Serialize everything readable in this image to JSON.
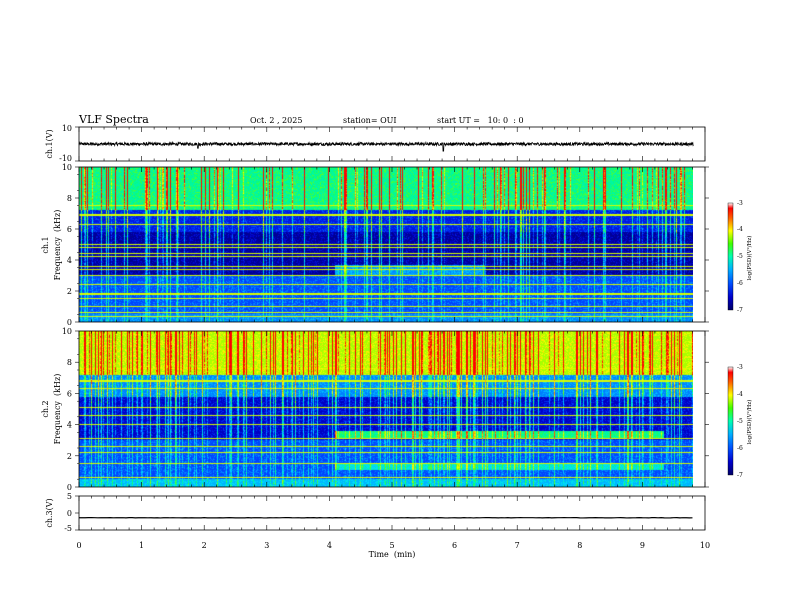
{
  "header": {
    "title": "VLF Spectra",
    "date": "Oct. 2 , 2025",
    "station": "station= OUI",
    "start": "start UT =   10: 0  : 0"
  },
  "colors": {
    "colormap": [
      "#000066",
      "#0000cc",
      "#0040ff",
      "#0099ff",
      "#00e0ff",
      "#00ff80",
      "#80ff00",
      "#ffff00",
      "#ff8000",
      "#ff0000",
      "#ffffff"
    ],
    "trace": "#000000"
  },
  "chart_data": [
    {
      "type": "line",
      "panel": "ch.1 waveform",
      "ylabel": "ch.1(V)",
      "ylim": [
        -10,
        10
      ],
      "yticks": [
        "10",
        "-10"
      ],
      "baseline": 0,
      "noise_amplitude": 0.9,
      "spikes": [
        {
          "x": 1.9,
          "y": -2.5
        },
        {
          "x": 5.82,
          "y": -4.2
        }
      ],
      "xlim": [
        0,
        10
      ],
      "data_end": 9.82
    },
    {
      "type": "heatmap",
      "panel": "ch.1 spectrogram",
      "ylabel_channel": "ch.1",
      "ylabel": "Frequency  (kHz)",
      "ylim": [
        0,
        10
      ],
      "yticks": [
        "0",
        "2",
        "4",
        "6",
        "8",
        "10"
      ],
      "xlim": [
        0,
        10
      ],
      "data_end": 9.82,
      "colorbar_ticks": [
        "-3",
        "-4",
        "-5",
        "-6",
        "-7"
      ],
      "colorbar_label": "log(PSD)(V²/Hz)",
      "clim": [
        -7,
        -3
      ],
      "bands": [
        {
          "f_low": 0,
          "f_high": 0.5,
          "level": -5.8
        },
        {
          "f_low": 0.5,
          "f_high": 3,
          "level": -6.1
        },
        {
          "f_low": 3,
          "f_high": 5.8,
          "level": -6.8
        },
        {
          "f_low": 5.8,
          "f_high": 7.2,
          "level": -6.4
        },
        {
          "f_low": 7.2,
          "f_high": 10,
          "level": -4.9
        }
      ],
      "hum_lines_khz": [
        0.35,
        0.6,
        1.0,
        1.5,
        1.8,
        2.4,
        3.0,
        3.4,
        3.6,
        4.2,
        4.4,
        4.8,
        5.0,
        6.3,
        6.9,
        7.5
      ],
      "enhancements": [
        {
          "t_start": 4.1,
          "t_end": 6.5,
          "f_low": 3.0,
          "f_high": 3.7,
          "level": -5.6
        }
      ],
      "spheric_density": 0.55
    },
    {
      "type": "heatmap",
      "panel": "ch.2 spectrogram",
      "ylabel_channel": "ch.2",
      "ylabel": "Frequency  (kHz)",
      "ylim": [
        0,
        10
      ],
      "yticks": [
        "0",
        "2",
        "4",
        "6",
        "8",
        "10"
      ],
      "xlim": [
        0,
        10
      ],
      "data_end": 9.82,
      "colorbar_ticks": [
        "-3",
        "-4",
        "-5",
        "-6",
        "-7"
      ],
      "colorbar_label": "log(PSD)(V²/Hz)",
      "clim": [
        -7,
        -3
      ],
      "bands": [
        {
          "f_low": 0,
          "f_high": 0.5,
          "level": -5.5
        },
        {
          "f_low": 0.5,
          "f_high": 3,
          "level": -6.1
        },
        {
          "f_low": 3,
          "f_high": 5.8,
          "level": -6.6
        },
        {
          "f_low": 5.8,
          "f_high": 7.2,
          "level": -5.8
        },
        {
          "f_low": 7.2,
          "f_high": 10,
          "level": -4.2
        }
      ],
      "hum_lines_khz": [
        0.6,
        1.5,
        2.2,
        2.6,
        3.1,
        4.0,
        4.6,
        5.1,
        6.3,
        6.8,
        7.6
      ],
      "enhancements": [
        {
          "t_start": 4.1,
          "t_end": 9.35,
          "f_low": 3.1,
          "f_high": 3.6,
          "level": -4.8
        },
        {
          "t_start": 4.1,
          "t_end": 9.35,
          "f_low": 1.1,
          "f_high": 1.5,
          "level": -5.1
        }
      ],
      "spheric_density": 0.7
    },
    {
      "type": "line",
      "panel": "ch.3 waveform",
      "ylabel": "ch.3(V)",
      "ylim": [
        -5,
        5
      ],
      "yticks": [
        "5",
        "0",
        "-5"
      ],
      "baseline": -1.4,
      "noise_amplitude": 0.05,
      "xlim": [
        0,
        10
      ],
      "data_end": 9.82,
      "xlabel": "Time  (min)",
      "xticks": [
        "0",
        "1",
        "2",
        "3",
        "4",
        "5",
        "6",
        "7",
        "8",
        "9",
        "10"
      ]
    }
  ]
}
